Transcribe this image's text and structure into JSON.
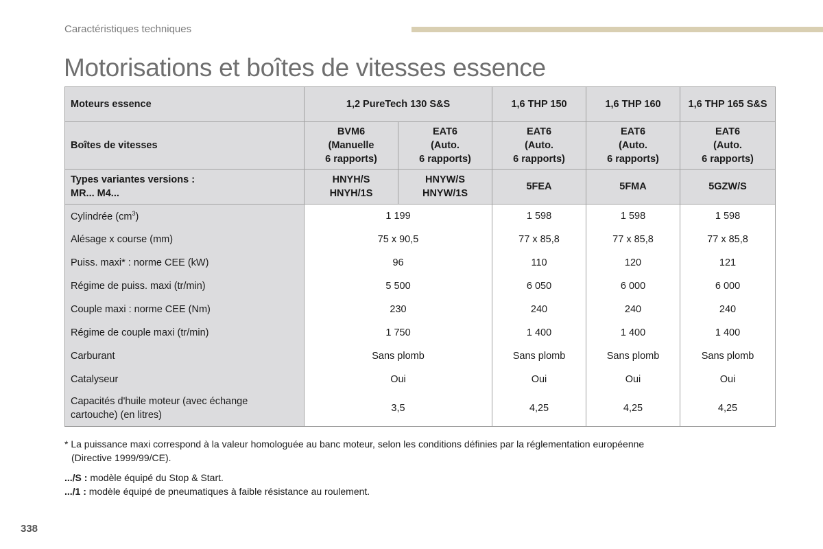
{
  "header": {
    "section": "Caractéristiques techniques"
  },
  "title": "Motorisations et boîtes de vitesses essence",
  "table": {
    "engines_label": "Moteurs essence",
    "engines": [
      "1,2 PureTech 130 S&S",
      "1,6 THP 150",
      "1,6 THP 160",
      "1,6 THP 165 S&S"
    ],
    "gearbox_label": "Boîtes de vitesses",
    "gearboxes": [
      [
        "BVM6",
        "(Manuelle",
        "6 rapports)"
      ],
      [
        "EAT6",
        "(Auto.",
        "6 rapports)"
      ],
      [
        "EAT6",
        "(Auto.",
        "6 rapports)"
      ],
      [
        "EAT6",
        "(Auto.",
        "6 rapports)"
      ],
      [
        "EAT6",
        "(Auto.",
        "6 rapports)"
      ]
    ],
    "types_label": [
      "Types variantes versions :",
      "MR... M4..."
    ],
    "types": [
      [
        "HNYH/S",
        "HNYH/1S"
      ],
      [
        "HNYW/S",
        "HNYW/1S"
      ],
      [
        "5FEA"
      ],
      [
        "5FMA"
      ],
      [
        "5GZW/S"
      ]
    ],
    "rows": [
      {
        "label": "Cylindrée (cm",
        "sup": "3",
        "label_end": ")",
        "values": [
          "1 199",
          "1 598",
          "1 598",
          "1 598"
        ]
      },
      {
        "label": "Alésage x course (mm)",
        "values": [
          "75 x 90,5",
          "77 x 85,8",
          "77 x 85,8",
          "77 x 85,8"
        ]
      },
      {
        "label": "Puiss. maxi* : norme CEE (kW)",
        "values": [
          "96",
          "110",
          "120",
          "121"
        ]
      },
      {
        "label": "Régime de puiss. maxi (tr/min)",
        "values": [
          "5 500",
          "6 050",
          "6 000",
          "6 000"
        ]
      },
      {
        "label": "Couple maxi : norme CEE (Nm)",
        "values": [
          "230",
          "240",
          "240",
          "240"
        ]
      },
      {
        "label": "Régime de couple maxi (tr/min)",
        "values": [
          "1 750",
          "1 400",
          "1 400",
          "1 400"
        ]
      },
      {
        "label": "Carburant",
        "values": [
          "Sans plomb",
          "Sans plomb",
          "Sans plomb",
          "Sans plomb"
        ]
      },
      {
        "label": "Catalyseur",
        "values": [
          "Oui",
          "Oui",
          "Oui",
          "Oui"
        ]
      },
      {
        "label_lines": [
          "Capacités d'huile moteur (avec échange",
          "cartouche) (en litres)"
        ],
        "values": [
          "3,5",
          "4,25",
          "4,25",
          "4,25"
        ]
      }
    ]
  },
  "footnote": {
    "line1": "* La puissance maxi correspond à la valeur homologuée au banc moteur, selon les conditions définies par la réglementation européenne",
    "line2": "(Directive 1999/99/CE)."
  },
  "legend": [
    {
      "key": ".../S :",
      "text": " modèle équipé du Stop & Start."
    },
    {
      "key": ".../1 :",
      "text": " modèle équipé de pneumatiques à faible résistance au roulement."
    }
  ],
  "page_number": "338",
  "colors": {
    "accent_bar": "#d9cfb2",
    "header_bg": "#dcdcde",
    "title": "#6f6f6f"
  }
}
